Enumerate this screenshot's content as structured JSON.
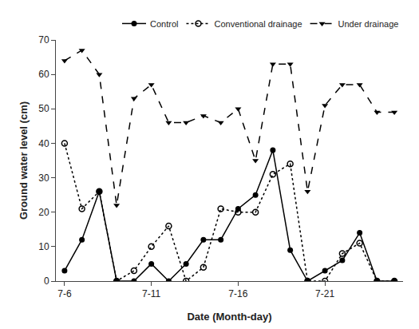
{
  "chart_data": {
    "type": "line",
    "x_label": "Date (Month-day)",
    "y_label": "Ground water level (cm)",
    "x": [
      0,
      1,
      2,
      3,
      4,
      5,
      6,
      7,
      8,
      9,
      10,
      11,
      12,
      13,
      14,
      15,
      16,
      17,
      18,
      19
    ],
    "series": [
      {
        "name": "Control",
        "color": "#000000",
        "marker": "circle",
        "line_style": "solid",
        "values": [
          3,
          12,
          26,
          0,
          0,
          5,
          0,
          5,
          12,
          12,
          21,
          25,
          38,
          9,
          0,
          3,
          6,
          14,
          0,
          0
        ]
      },
      {
        "name": "Conventional drainage",
        "color": "#000000",
        "marker": "circle-open",
        "line_style": "dot",
        "values": [
          40,
          21,
          26,
          0,
          3,
          10,
          16,
          0,
          4,
          21,
          20,
          20,
          31,
          34,
          0,
          0,
          8,
          11,
          0,
          0
        ]
      },
      {
        "name": "Under drainage",
        "color": "#000000",
        "marker": "triangle-down",
        "line_style": "dash",
        "values": [
          64,
          67,
          60,
          22,
          53,
          57,
          46,
          46,
          48,
          46,
          50,
          35,
          63,
          63,
          26,
          51,
          57,
          57,
          49,
          49
        ]
      }
    ],
    "xlim": [
      -0.5,
      19.5
    ],
    "xticks": [
      {
        "value": 0,
        "label": "7-6"
      },
      {
        "value": 5,
        "label": "7-11"
      },
      {
        "value": 10,
        "label": "7-16"
      },
      {
        "value": 15,
        "label": "7-21"
      }
    ],
    "ylim": [
      0,
      70
    ],
    "yticks": [
      0,
      10,
      20,
      30,
      40,
      50,
      60,
      70
    ],
    "grid": false,
    "legend": "upper right"
  }
}
